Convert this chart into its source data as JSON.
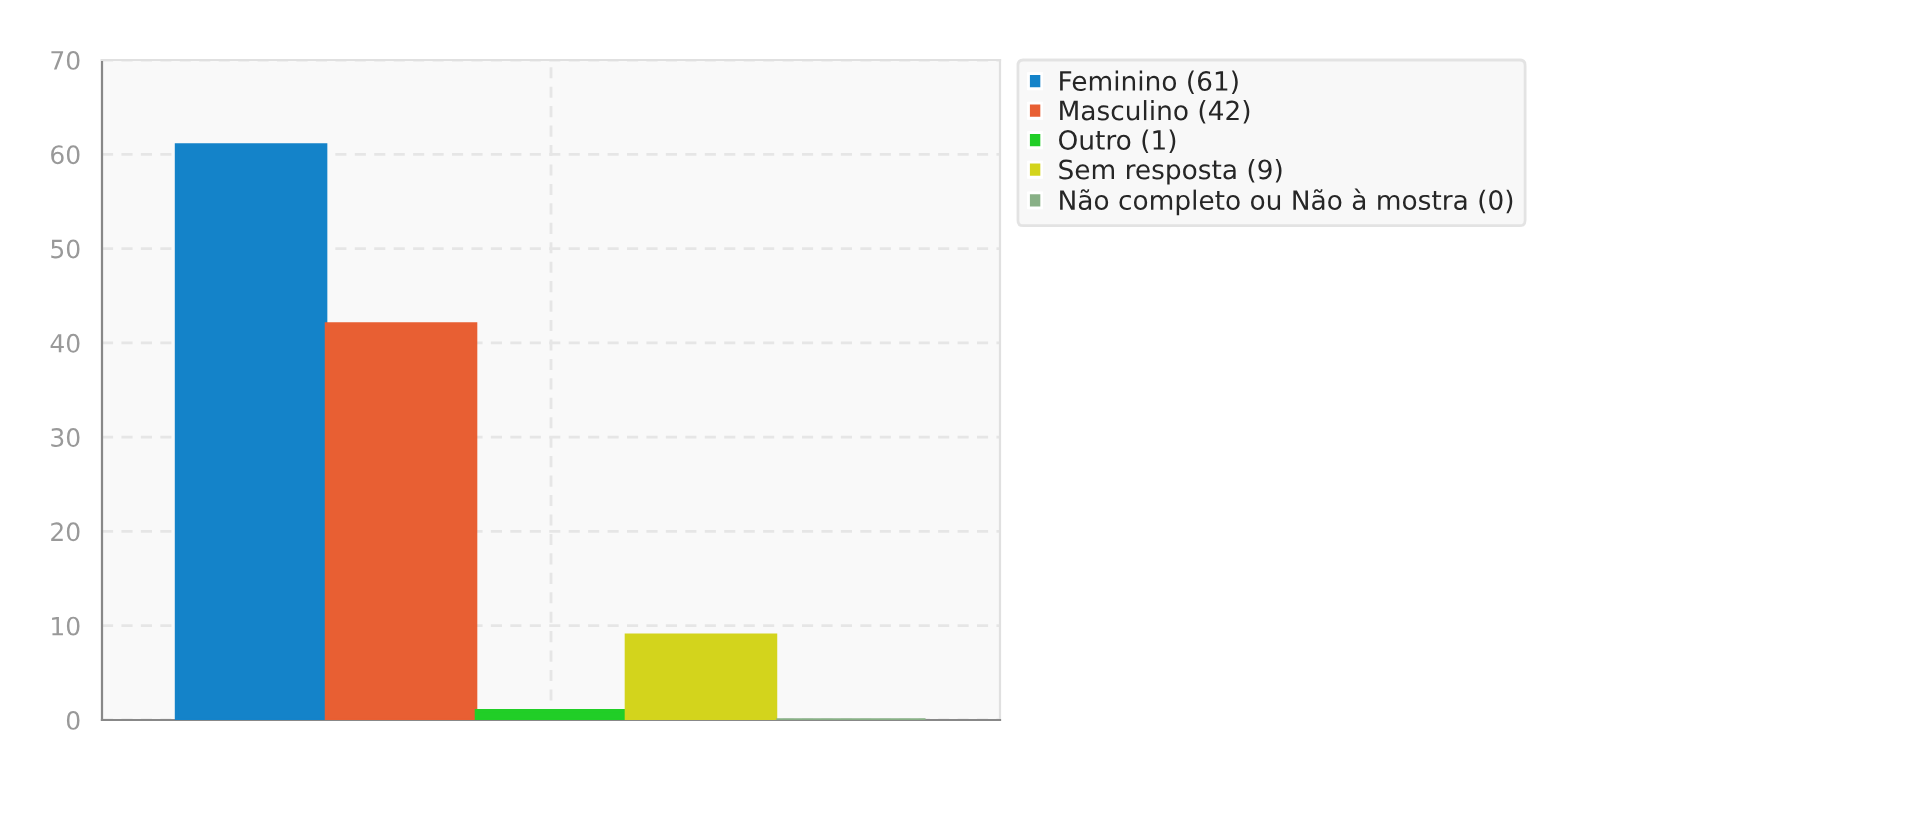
{
  "chart_data": {
    "type": "bar",
    "categories": [
      null
    ],
    "series": [
      {
        "name": "Feminino (61)",
        "color": "#1483c9",
        "values": [
          61
        ]
      },
      {
        "name": "Masculino (42)",
        "color": "#e85f33",
        "values": [
          42
        ]
      },
      {
        "name": "Outro (1)",
        "color": "#21ce27",
        "values": [
          1
        ]
      },
      {
        "name": "Sem resposta (9)",
        "color": "#d3d41c",
        "values": [
          9
        ]
      },
      {
        "name": "Não completo ou Não à mostra (0)",
        "color": "#88b086",
        "values": [
          0
        ]
      }
    ],
    "ylim": [
      0,
      70
    ],
    "yticks": [
      0,
      10,
      20,
      30,
      40,
      50,
      60,
      70
    ],
    "grid": true,
    "legend": "right"
  }
}
